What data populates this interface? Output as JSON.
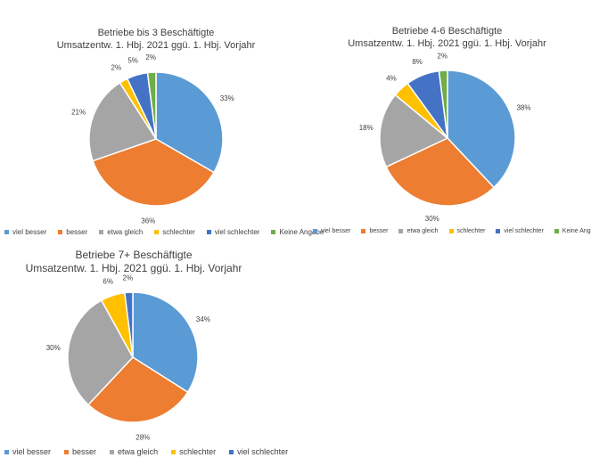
{
  "chart_data": [
    {
      "type": "pie",
      "title": "Betriebe bis 3 Beschäftigte",
      "subtitle": "Umsatzentw. 1. Hbj. 2021 ggü. 1. Hbj. Vorjahr",
      "categories": [
        "viel besser",
        "besser",
        "etwa gleich",
        "schlechter",
        "viel schlechter",
        "Keine Angabe"
      ],
      "values": [
        33,
        36,
        21,
        2,
        5,
        2
      ],
      "labels": [
        "33%",
        "36%",
        "21%",
        "2%",
        "5%",
        "2%"
      ],
      "legend": "bottom"
    },
    {
      "type": "pie",
      "title": "Betriebe 4-6 Beschäftigte",
      "subtitle": "Umsatzentw. 1. Hbj. 2021 ggü. 1. Hbj. Vorjahr",
      "categories": [
        "viel besser",
        "besser",
        "etwa gleich",
        "schlechter",
        "viel schlechter",
        "Keine Angabe"
      ],
      "values": [
        38,
        30,
        18,
        4,
        8,
        2
      ],
      "labels": [
        "38%",
        "30%",
        "18%",
        "4%",
        "8%",
        "2%"
      ],
      "legend": "bottom"
    },
    {
      "type": "pie",
      "title": "Betriebe 7+ Beschäftigte",
      "subtitle": "Umsatzentw. 1. Hbj. 2021 ggü. 1. Hbj. Vorjahr",
      "categories": [
        "viel besser",
        "besser",
        "etwa gleich",
        "schlechter",
        "viel schlechter"
      ],
      "values": [
        34,
        28,
        30,
        6,
        2
      ],
      "labels": [
        "34%",
        "28%",
        "30%",
        "6%",
        "2%"
      ],
      "legend": "bottom"
    }
  ],
  "colors": [
    "#5b9bd5",
    "#ed7d31",
    "#a5a5a5",
    "#ffc000",
    "#4472c4",
    "#70ad47"
  ]
}
